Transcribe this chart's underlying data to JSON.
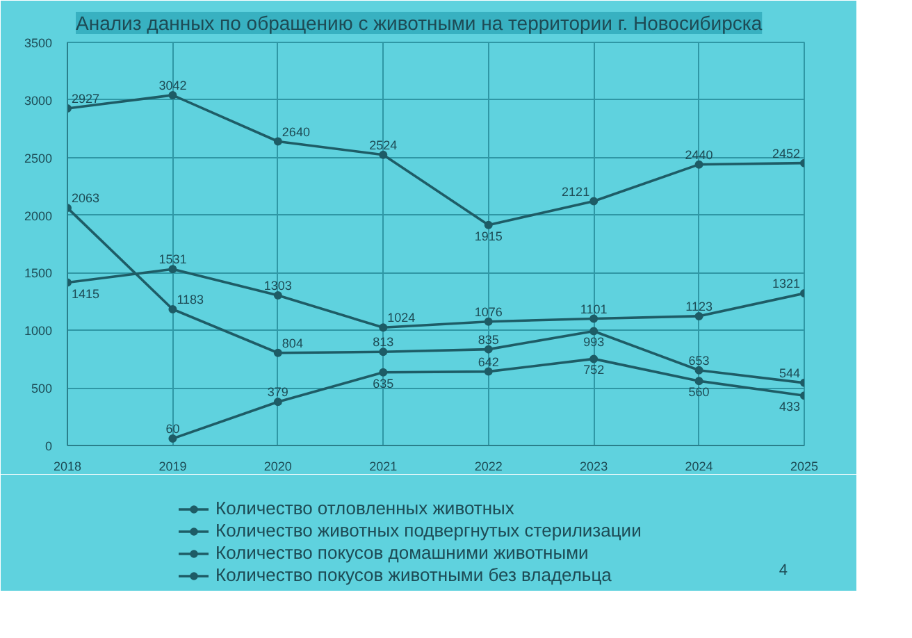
{
  "chart_data": {
    "type": "line",
    "title": "Анализ данных по обращению с животными на территории г. Новосибирска",
    "x": [
      2018,
      2019,
      2020,
      2021,
      2022,
      2023,
      2024,
      2025
    ],
    "series": [
      {
        "name": "Количество отловленных животных",
        "color": "#1e5c66",
        "values": [
          2927,
          3042,
          2640,
          2524,
          1915,
          2121,
          2440,
          2452
        ]
      },
      {
        "name": "Количество животных подвергнутых стерилизации",
        "color": "#1e5c66",
        "values": [
          1415,
          1531,
          1303,
          1024,
          1076,
          1101,
          1123,
          1321
        ]
      },
      {
        "name": "Количество покусов домашними животными",
        "color": "#1e5c66",
        "values": [
          2063,
          1183,
          804,
          813,
          835,
          993,
          653,
          544
        ]
      },
      {
        "name": "Количество покусов животными без владельца",
        "color": "#1e5c66",
        "values": [
          null,
          60,
          379,
          635,
          642,
          752,
          560,
          433
        ]
      }
    ],
    "xlim": [
      2018,
      2025
    ],
    "xticks": [
      2018,
      2019,
      2020,
      2021,
      2022,
      2023,
      2024,
      2025
    ],
    "ylim": [
      0,
      3500
    ],
    "yticks": [
      0,
      500,
      1000,
      1500,
      2000,
      2500,
      3000,
      3500
    ],
    "grid": true,
    "legend": "bottom",
    "marker": "circle",
    "line_style": "solid",
    "data_labels": true,
    "annotations": [
      "4"
    ]
  }
}
